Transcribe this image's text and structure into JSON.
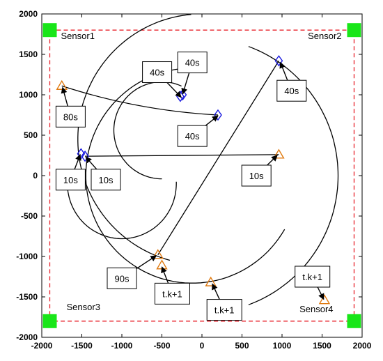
{
  "chart_data": {
    "type": "scatter",
    "title": "",
    "xlabel": "",
    "ylabel": "",
    "xlim": [
      -2000,
      2000
    ],
    "ylim": [
      -2000,
      2000
    ],
    "xticks": [
      -2000,
      -1500,
      -1000,
      -500,
      0,
      500,
      1000,
      1500,
      2000
    ],
    "yticks": [
      -2000,
      -1500,
      -1000,
      -500,
      0,
      500,
      1000,
      1500,
      2000
    ],
    "grid": false,
    "colors": {
      "boundary": "#e8202a",
      "sensor": "#19e619",
      "diamond": "#1a1adf",
      "triangle": "#e07a10",
      "track": "#000000"
    },
    "boundary": {
      "x": [
        -1900,
        1900
      ],
      "y": [
        -1800,
        1800
      ]
    },
    "sensors": [
      {
        "name": "Sensor1",
        "x": -1900,
        "y": 1800
      },
      {
        "name": "Sensor2",
        "x": 1900,
        "y": 1800
      },
      {
        "name": "Sensor3",
        "x": -1900,
        "y": -1800
      },
      {
        "name": "Sensor4",
        "x": 1900,
        "y": -1800
      }
    ],
    "diamond_points": [
      {
        "x": 960,
        "y": 1420
      },
      {
        "x": -270,
        "y": 980
      },
      {
        "x": -240,
        "y": 1000
      },
      {
        "x": 200,
        "y": 750
      },
      {
        "x": -1510,
        "y": 270
      },
      {
        "x": -1460,
        "y": 240
      }
    ],
    "triangle_points": [
      {
        "x": -1750,
        "y": 1110
      },
      {
        "x": 960,
        "y": 260
      },
      {
        "x": -550,
        "y": -980
      },
      {
        "x": -500,
        "y": -1110
      },
      {
        "x": 110,
        "y": -1320
      },
      {
        "x": 1530,
        "y": -1540
      }
    ],
    "tracks": [
      {
        "kind": "line",
        "from": [
          -1750,
          1110
        ],
        "to": [
          200,
          750
        ],
        "bend": 30
      },
      {
        "kind": "line",
        "from": [
          960,
          260
        ],
        "to": [
          -1460,
          240
        ],
        "bend": 0
      },
      {
        "kind": "line",
        "from": [
          -550,
          -980
        ],
        "to": [
          960,
          1420
        ],
        "bend": 0
      },
      {
        "kind": "arc",
        "center": [
          -1000,
          -100
        ],
        "radius": 680,
        "start_deg": 184,
        "end_deg": 362
      },
      {
        "kind": "arc",
        "center": [
          -500,
          560
        ],
        "radius": 600,
        "start_deg": 66,
        "end_deg": 270
      },
      {
        "kind": "arc",
        "center": [
          0,
          0
        ],
        "radius": 1700,
        "start_deg": -70,
        "end_deg": 70
      },
      {
        "kind": "arc",
        "center": [
          0,
          450
        ],
        "radius": 1550,
        "start_deg": 95,
        "end_deg": 255
      },
      {
        "kind": "arc",
        "center": [
          -120,
          0
        ],
        "radius": 1330,
        "start_deg": 97,
        "end_deg": 330
      }
    ],
    "annotations": [
      {
        "text": "40s",
        "box": [
          -560,
          1280
        ],
        "tip": [
          -260,
          970
        ]
      },
      {
        "text": "40s",
        "box": [
          -120,
          1400
        ],
        "tip": [
          -240,
          1010
        ]
      },
      {
        "text": "40s",
        "box": [
          1120,
          1050
        ],
        "tip": [
          980,
          1400
        ]
      },
      {
        "text": "40s",
        "box": [
          -120,
          490
        ],
        "tip": [
          200,
          740
        ]
      },
      {
        "text": "80s",
        "box": [
          -1640,
          730
        ],
        "tip": [
          -1740,
          1090
        ]
      },
      {
        "text": "10s",
        "box": [
          -1640,
          -50
        ],
        "tip": [
          -1520,
          260
        ]
      },
      {
        "text": "10s",
        "box": [
          -1200,
          -50
        ],
        "tip": [
          -1450,
          230
        ]
      },
      {
        "text": "10s",
        "box": [
          680,
          0
        ],
        "tip": [
          940,
          250
        ]
      },
      {
        "text": "90s",
        "box": [
          -1000,
          -1270
        ],
        "tip": [
          -570,
          -990
        ]
      },
      {
        "text": "t.k+1",
        "box": [
          -370,
          -1460
        ],
        "tip": [
          -500,
          -1130
        ]
      },
      {
        "text": "t.k+1",
        "box": [
          280,
          -1660
        ],
        "tip": [
          130,
          -1340
        ]
      },
      {
        "text": "t.k+1",
        "box": [
          1380,
          -1250
        ],
        "tip": [
          1520,
          -1530
        ]
      }
    ]
  }
}
